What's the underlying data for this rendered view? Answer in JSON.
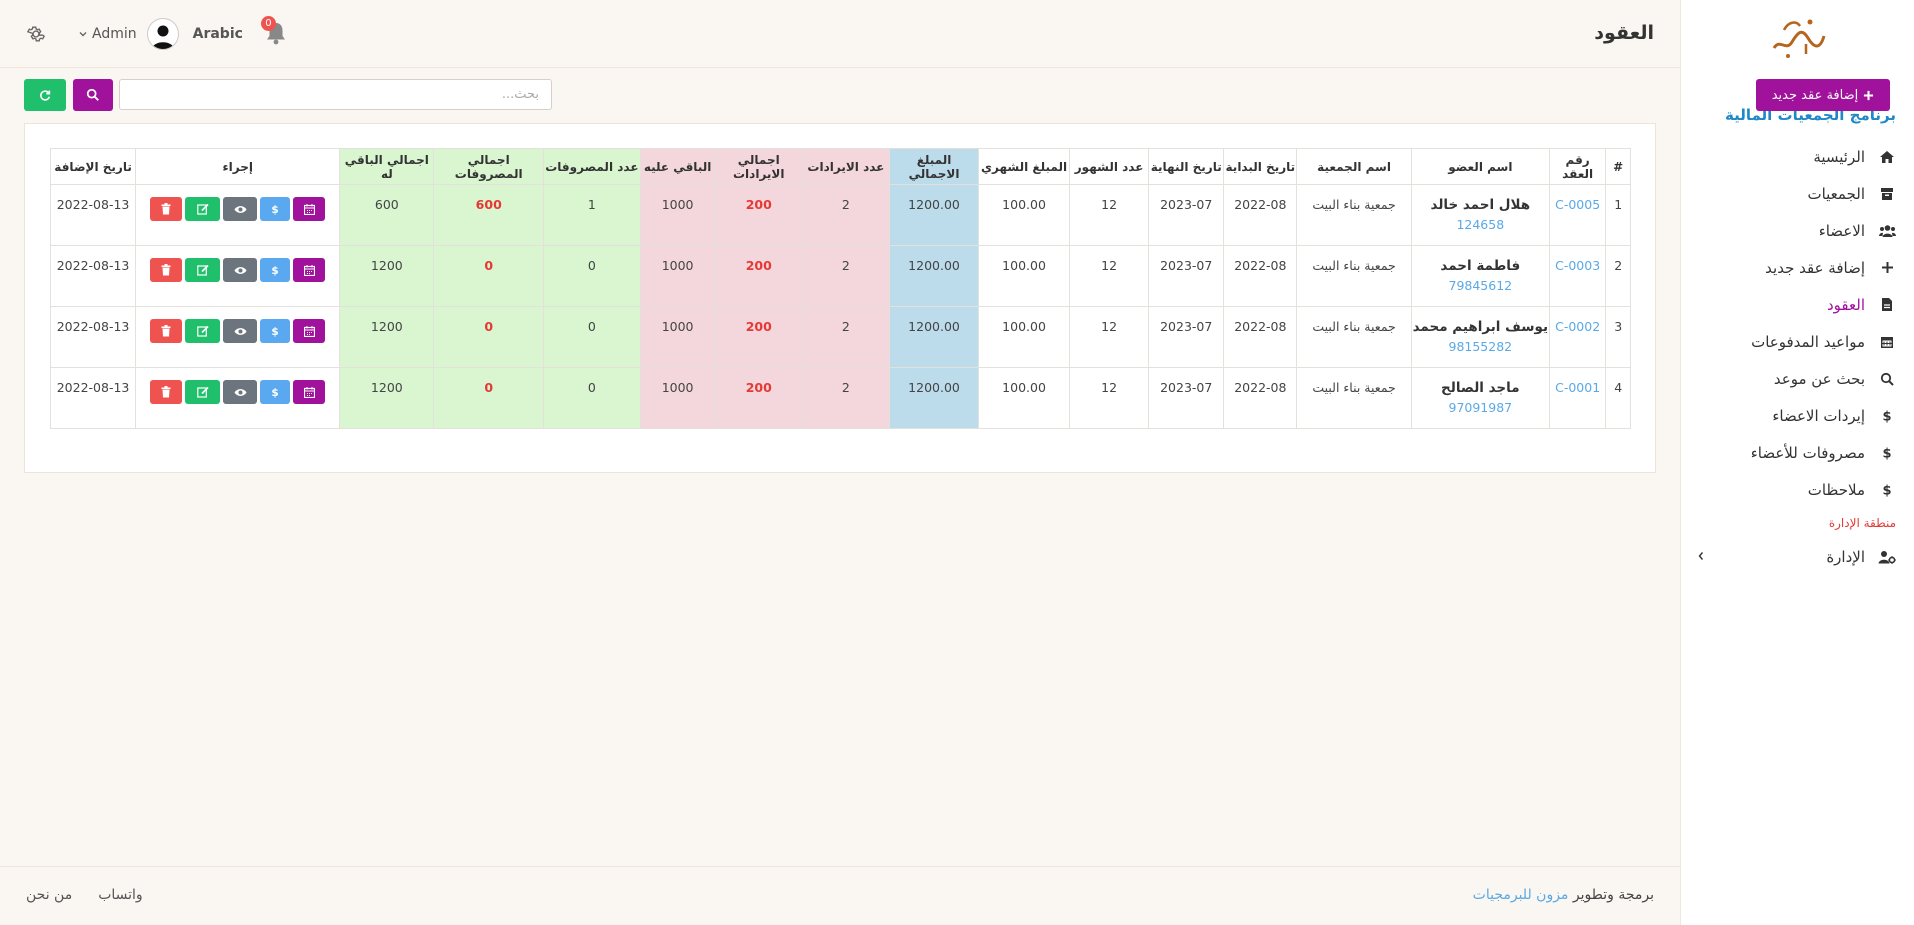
{
  "sidebar": {
    "app_title": "برنامج الجمعيات المالية",
    "items": [
      {
        "label": "الرئيسية",
        "icon": "home-icon",
        "active": false
      },
      {
        "label": "الجمعيات",
        "icon": "box-icon",
        "active": false
      },
      {
        "label": "الاعضاء",
        "icon": "users-icon",
        "active": false
      },
      {
        "label": "إضافة عقد جديد",
        "icon": "plus-icon",
        "active": false
      },
      {
        "label": "العقود",
        "icon": "file-icon",
        "active": true
      },
      {
        "label": "مواعيد المدفوعات",
        "icon": "calendar-icon",
        "active": false
      },
      {
        "label": "بحث عن موعد",
        "icon": "search-icon",
        "active": false
      },
      {
        "label": "إيردات الاعضاء",
        "icon": "dollar-icon",
        "active": false
      },
      {
        "label": "مصروفات للأعضاء",
        "icon": "dollar-icon",
        "active": false
      },
      {
        "label": "ملاحظات",
        "icon": "dollar-icon",
        "active": false
      }
    ],
    "section_label": "منطقة الإدارة",
    "admin_item": {
      "label": "الإدارة",
      "icon": "user-gear-icon"
    }
  },
  "header": {
    "page_title": "العقود",
    "language": "Arabic",
    "user_name": "Admin",
    "notification_count": "0"
  },
  "toolbar": {
    "add_label": "إضافة عقد جديد",
    "search_placeholder": "بحث..."
  },
  "table": {
    "columns": [
      "#",
      "رقم العقد",
      "اسم العضو",
      "اسم الجمعية",
      "تاريخ البداية",
      "تاريخ النهاية",
      "عدد الشهور",
      "المبلغ الشهري",
      "المبلغ الاجمالي",
      "عدد الايرادات",
      "اجمالي الايرادات",
      "الباقي عليه",
      "عدد المصروفات",
      "اجمالي المصروفات",
      "اجمالي الباقي له",
      "إجراء",
      "تاريخ الإضافة"
    ],
    "rows": [
      {
        "index": "1",
        "contract_no": "C-0005",
        "member_name": "هلال احمد خالد",
        "member_phone": "124658",
        "association": "جمعية بناء البيت",
        "start": "2022-08",
        "end": "2023-07",
        "months": "12",
        "monthly": "100.00",
        "total": "1200.00",
        "revenue_count": "2",
        "revenue_total": "200",
        "remaining_on": "1000",
        "expense_count": "1",
        "expense_total": "600",
        "remaining_for": "600",
        "added": "2022-08-13"
      },
      {
        "index": "2",
        "contract_no": "C-0003",
        "member_name": "فاطمة احمد",
        "member_phone": "79845612",
        "association": "جمعية بناء البيت",
        "start": "2022-08",
        "end": "2023-07",
        "months": "12",
        "monthly": "100.00",
        "total": "1200.00",
        "revenue_count": "2",
        "revenue_total": "200",
        "remaining_on": "1000",
        "expense_count": "0",
        "expense_total": "0",
        "remaining_for": "1200",
        "added": "2022-08-13"
      },
      {
        "index": "3",
        "contract_no": "C-0002",
        "member_name": "يوسف ابراهيم محمد",
        "member_phone": "98155282",
        "association": "جمعية بناء البيت",
        "start": "2022-08",
        "end": "2023-07",
        "months": "12",
        "monthly": "100.00",
        "total": "1200.00",
        "revenue_count": "2",
        "revenue_total": "200",
        "remaining_on": "1000",
        "expense_count": "0",
        "expense_total": "0",
        "remaining_for": "1200",
        "added": "2022-08-13"
      },
      {
        "index": "4",
        "contract_no": "C-0001",
        "member_name": "ماجد الصالح",
        "member_phone": "97091987",
        "association": "جمعية بناء البيت",
        "start": "2022-08",
        "end": "2023-07",
        "months": "12",
        "monthly": "100.00",
        "total": "1200.00",
        "revenue_count": "2",
        "revenue_total": "200",
        "remaining_on": "1000",
        "expense_count": "0",
        "expense_total": "0",
        "remaining_for": "1200",
        "added": "2022-08-13"
      }
    ]
  },
  "footer": {
    "credit_prefix": "برمجة وتطوير",
    "credit_brand": "مزون للبرمجيات",
    "links": [
      "من نحن",
      "واتساب"
    ]
  },
  "colors": {
    "accent": "#a0119c",
    "success": "#1fbf6b",
    "danger": "#ef5350",
    "info": "#5aa9f0",
    "title_blue": "#1e88c8"
  }
}
